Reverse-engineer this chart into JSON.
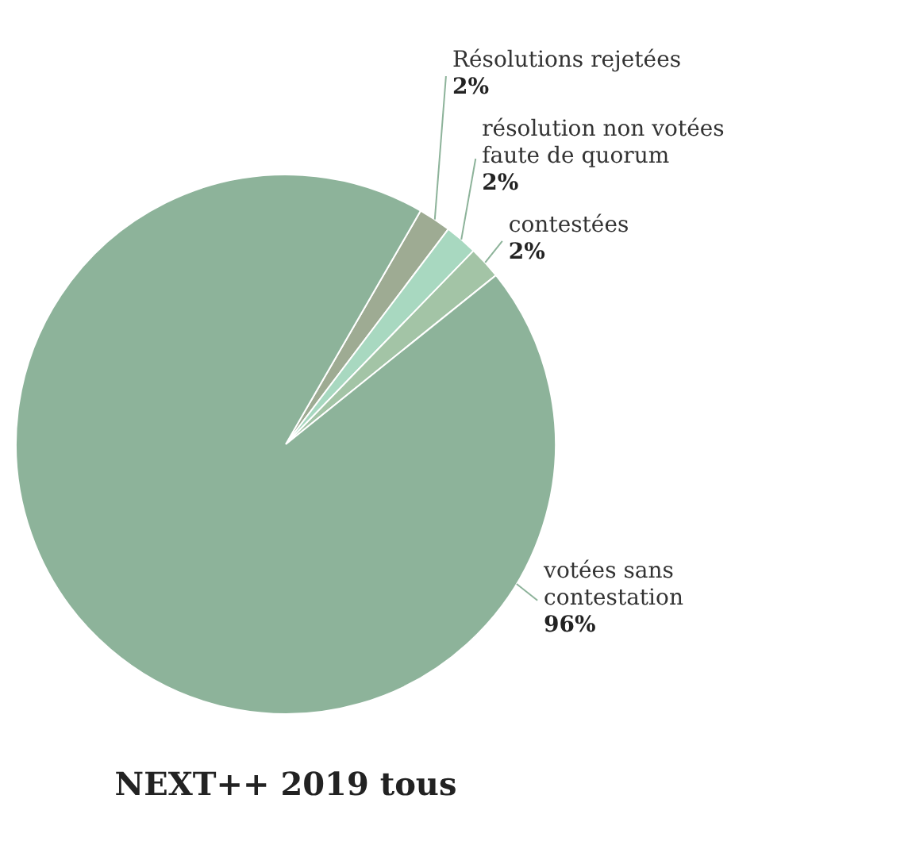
{
  "chart_data": {
    "type": "pie",
    "title": "NEXT++ 2019 tous",
    "categories": [
      "Résolutions rejetées",
      "résolution non votées faute de quorum",
      "contestées",
      "votées sans contestation"
    ],
    "values": [
      2,
      2,
      2,
      96
    ],
    "value_labels": [
      "2%",
      "2%",
      "2%",
      "96%"
    ],
    "colors": [
      "#9eab93",
      "#a8d8c0",
      "#a3c4a6",
      "#8db39a"
    ]
  }
}
